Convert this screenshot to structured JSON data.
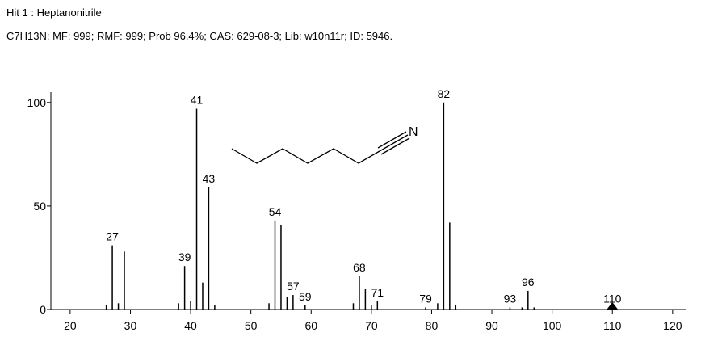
{
  "chart_data": {
    "type": "stem",
    "title": "Hit 1 : Heptanonitrile",
    "subtitle": "C7H13N; MF: 999; RMF: 999; Prob 96.4%; CAS: 629-08-3; Lib: w10n11r; ID: 5946.",
    "structure_label": "N",
    "x": [
      26,
      27,
      28,
      29,
      38,
      39,
      40,
      41,
      42,
      43,
      44,
      53,
      54,
      55,
      56,
      57,
      59,
      67,
      68,
      69,
      70,
      71,
      79,
      81,
      82,
      83,
      84,
      93,
      95,
      96,
      97,
      110
    ],
    "values": [
      2,
      31,
      3,
      28,
      3,
      21,
      4,
      97,
      13,
      59,
      2,
      3,
      43,
      41,
      6,
      7,
      2,
      3,
      16,
      10,
      2,
      4,
      1,
      3,
      100,
      42,
      2,
      1,
      1,
      9,
      1,
      1
    ],
    "peak_labels": [
      null,
      27,
      null,
      null,
      null,
      39,
      null,
      41,
      null,
      43,
      null,
      null,
      54,
      null,
      null,
      57,
      59,
      null,
      68,
      null,
      null,
      71,
      79,
      null,
      82,
      null,
      null,
      93,
      null,
      96,
      null,
      110
    ],
    "color": "#000000",
    "xlim": [
      16.8,
      122.3
    ],
    "ylim": [
      0,
      105
    ],
    "xticks": [
      20,
      30,
      40,
      50,
      60,
      70,
      80,
      90,
      100,
      110,
      120
    ],
    "yticks": [
      0,
      50,
      100
    ]
  }
}
